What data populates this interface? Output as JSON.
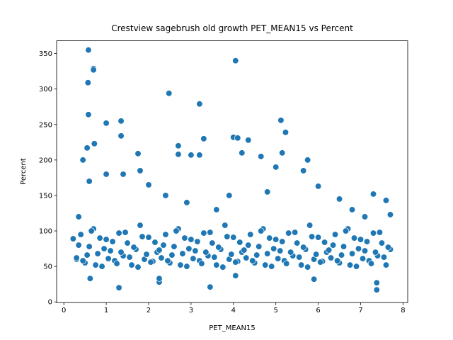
{
  "chart_data": {
    "type": "scatter",
    "title": "Crestview sagebrush old growth PET_MEAN15 vs Percent",
    "xlabel": "PET_MEAN15",
    "ylabel": "Percent",
    "color": "#1f77b4",
    "xlim": [
      -0.17,
      8.11
    ],
    "ylim": [
      -1,
      368
    ],
    "xticks": [
      0,
      1,
      2,
      3,
      4,
      5,
      6,
      7,
      8
    ],
    "yticks": [
      0,
      50,
      100,
      150,
      200,
      250,
      300,
      350
    ],
    "x": [
      0.58,
      0.57,
      0.7,
      0.7,
      0.58,
      0.72,
      0.55,
      1.0,
      1.35,
      1.35,
      2.48,
      3.2,
      4.05,
      5.12,
      5.23,
      3.3,
      4.0,
      4.1,
      4.35,
      4.2,
      3.0,
      3.2,
      2.7,
      2.7,
      1.75,
      0.3,
      0.22,
      0.62,
      1.3,
      2.25,
      2.25,
      3.45,
      7.38,
      7.38,
      5.9,
      4.05,
      7.3,
      7.6,
      7.7,
      6.0,
      6.5,
      5.75,
      5.65,
      4.65,
      5.0,
      5.15,
      3.9,
      4.8,
      2.9,
      2.4,
      1.8,
      0.35,
      0.45,
      0.6,
      1.0,
      1.4,
      2.0,
      3.6,
      6.8,
      7.1,
      0.3,
      0.4,
      0.5,
      0.6,
      0.7,
      0.8,
      0.9,
      1.0,
      1.1,
      1.2,
      1.3,
      1.4,
      1.5,
      1.6,
      1.7,
      1.8,
      1.9,
      2.0,
      2.1,
      2.2,
      2.3,
      2.4,
      2.5,
      2.6,
      2.7,
      2.8,
      2.9,
      3.0,
      3.1,
      3.2,
      3.3,
      3.4,
      3.5,
      3.6,
      3.7,
      3.8,
      3.9,
      4.0,
      4.1,
      4.2,
      4.3,
      4.4,
      4.5,
      4.6,
      4.7,
      4.8,
      4.9,
      5.0,
      5.1,
      5.2,
      5.3,
      5.4,
      5.5,
      5.6,
      5.7,
      5.8,
      5.9,
      6.0,
      6.1,
      6.2,
      6.3,
      6.4,
      6.5,
      6.6,
      6.7,
      6.8,
      6.9,
      7.0,
      7.1,
      7.2,
      7.3,
      7.4,
      7.5,
      7.6,
      7.7,
      0.35,
      0.45,
      0.55,
      0.65,
      0.75,
      0.85,
      0.95,
      1.05,
      1.15,
      1.25,
      1.35,
      1.45,
      1.55,
      1.65,
      1.75,
      1.85,
      1.95,
      2.05,
      2.15,
      2.25,
      2.35,
      2.45,
      2.55,
      2.65,
      2.75,
      2.85,
      2.95,
      3.05,
      3.15,
      3.25,
      3.35,
      3.45,
      3.55,
      3.65,
      3.75,
      3.85,
      3.95,
      4.05,
      4.15,
      4.25,
      4.35,
      4.45,
      4.55,
      4.65,
      4.75,
      4.85,
      4.95,
      5.05,
      5.15,
      5.25,
      5.35,
      5.45,
      5.55,
      5.65,
      5.75,
      5.85,
      5.95,
      6.05,
      6.15,
      6.25,
      6.35,
      6.45,
      6.55,
      6.65,
      6.75,
      6.85,
      6.95,
      7.05,
      7.15,
      7.25,
      7.35,
      7.45,
      7.55,
      7.65
    ],
    "y": [
      355,
      309,
      329,
      327,
      264,
      223,
      217,
      252,
      255,
      234,
      294,
      279,
      340,
      256,
      239,
      230,
      232,
      231,
      228,
      210,
      207,
      207,
      220,
      208,
      209,
      60,
      89,
      33,
      20,
      28,
      33,
      21,
      27,
      17,
      32,
      37,
      152,
      143,
      123,
      163,
      145,
      200,
      185,
      205,
      190,
      210,
      150,
      155,
      140,
      150,
      185,
      120,
      200,
      170,
      180,
      180,
      165,
      130,
      130,
      120,
      62,
      95,
      55,
      78,
      103,
      68,
      50,
      88,
      72,
      58,
      97,
      65,
      83,
      52,
      74,
      108,
      60,
      91,
      57,
      70,
      62,
      95,
      55,
      78,
      103,
      68,
      50,
      88,
      72,
      58,
      97,
      65,
      83,
      52,
      74,
      108,
      60,
      91,
      57,
      70,
      62,
      95,
      55,
      78,
      103,
      68,
      50,
      88,
      72,
      58,
      97,
      65,
      83,
      52,
      74,
      108,
      60,
      91,
      57,
      70,
      62,
      95,
      55,
      78,
      103,
      68,
      50,
      88,
      72,
      58,
      97,
      65,
      83,
      52,
      74,
      80,
      58,
      66,
      100,
      52,
      90,
      75,
      61,
      85,
      54,
      70,
      98,
      63,
      77,
      49,
      92,
      67,
      56,
      84,
      73,
      80,
      58,
      66,
      100,
      52,
      90,
      75,
      61,
      85,
      54,
      70,
      98,
      63,
      77,
      49,
      92,
      67,
      56,
      84,
      73,
      80,
      58,
      66,
      100,
      52,
      90,
      75,
      61,
      85,
      54,
      70,
      98,
      63,
      77,
      49,
      92,
      67,
      56,
      84,
      73,
      80,
      58,
      66,
      100,
      52,
      90,
      75,
      61,
      85,
      54,
      70,
      98,
      63,
      77
    ]
  }
}
